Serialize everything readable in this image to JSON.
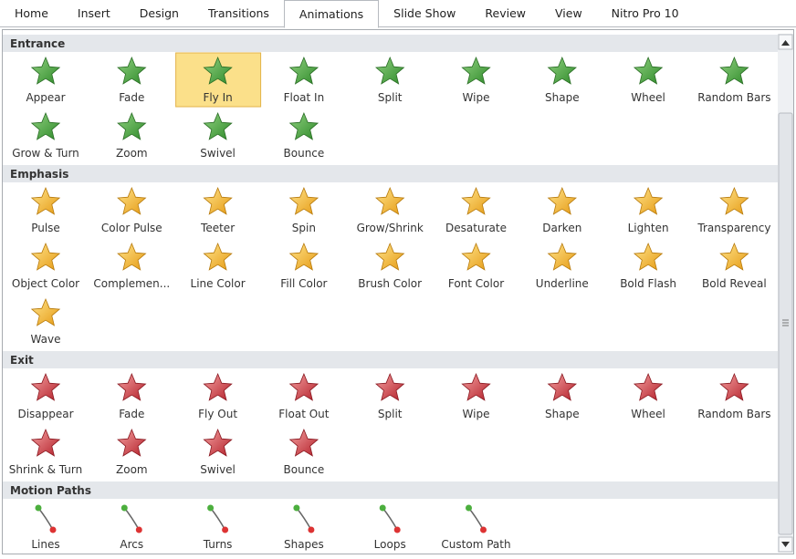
{
  "tabs": [
    {
      "label": "Home"
    },
    {
      "label": "Insert"
    },
    {
      "label": "Design"
    },
    {
      "label": "Transitions"
    },
    {
      "label": "Animations",
      "active": true
    },
    {
      "label": "Slide Show"
    },
    {
      "label": "Review"
    },
    {
      "label": "View"
    },
    {
      "label": "Nitro Pro 10"
    }
  ],
  "sections": [
    {
      "title": "Entrance",
      "color": "green",
      "items": [
        {
          "label": "Appear"
        },
        {
          "label": "Fade"
        },
        {
          "label": "Fly In",
          "selected": true
        },
        {
          "label": "Float In"
        },
        {
          "label": "Split"
        },
        {
          "label": "Wipe"
        },
        {
          "label": "Shape"
        },
        {
          "label": "Wheel"
        },
        {
          "label": "Random Bars"
        },
        {
          "label": "Grow & Turn"
        },
        {
          "label": "Zoom"
        },
        {
          "label": "Swivel"
        },
        {
          "label": "Bounce"
        }
      ]
    },
    {
      "title": "Emphasis",
      "color": "gold",
      "items": [
        {
          "label": "Pulse"
        },
        {
          "label": "Color Pulse"
        },
        {
          "label": "Teeter"
        },
        {
          "label": "Spin"
        },
        {
          "label": "Grow/Shrink"
        },
        {
          "label": "Desaturate"
        },
        {
          "label": "Darken"
        },
        {
          "label": "Lighten"
        },
        {
          "label": "Transparency"
        },
        {
          "label": "Object Color"
        },
        {
          "label": "Complemen..."
        },
        {
          "label": "Line Color"
        },
        {
          "label": "Fill Color"
        },
        {
          "label": "Brush Color"
        },
        {
          "label": "Font Color"
        },
        {
          "label": "Underline"
        },
        {
          "label": "Bold Flash"
        },
        {
          "label": "Bold Reveal"
        },
        {
          "label": "Wave"
        }
      ]
    },
    {
      "title": "Exit",
      "color": "red",
      "items": [
        {
          "label": "Disappear"
        },
        {
          "label": "Fade"
        },
        {
          "label": "Fly Out"
        },
        {
          "label": "Float Out"
        },
        {
          "label": "Split"
        },
        {
          "label": "Wipe"
        },
        {
          "label": "Shape"
        },
        {
          "label": "Wheel"
        },
        {
          "label": "Random Bars"
        },
        {
          "label": "Shrink & Turn"
        },
        {
          "label": "Zoom"
        },
        {
          "label": "Swivel"
        },
        {
          "label": "Bounce"
        }
      ]
    },
    {
      "title": "Motion Paths",
      "color": "path",
      "items": [
        {
          "label": "Lines"
        },
        {
          "label": "Arcs"
        },
        {
          "label": "Turns"
        },
        {
          "label": "Shapes"
        },
        {
          "label": "Loops"
        },
        {
          "label": "Custom Path"
        }
      ]
    }
  ]
}
